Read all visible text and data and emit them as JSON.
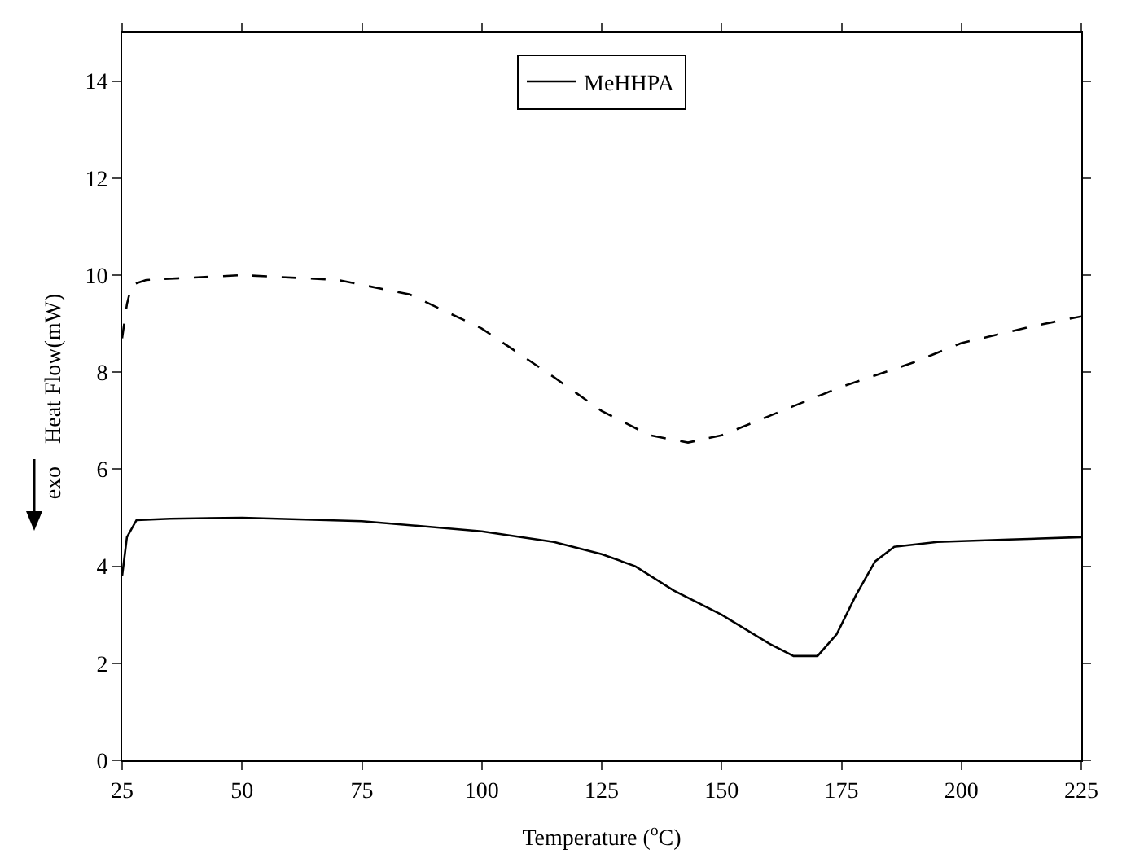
{
  "chart_data": {
    "type": "line",
    "xlabel": "Temperature ($^{o}$C)",
    "ylabel": "exo    Heat Flow(mW)",
    "xlim": [
      25,
      225
    ],
    "xticks": [
      25,
      50,
      75,
      100,
      125,
      150,
      175,
      200,
      225
    ],
    "ylim": [
      0,
      15
    ],
    "yticks": [
      0,
      2,
      4,
      6,
      8,
      10,
      12,
      14
    ],
    "grid": false,
    "legend": "top",
    "marker": "none",
    "series": [
      {
        "name": "MeHHPA",
        "color": "#000000",
        "line_style": "solid",
        "x": [
          25,
          26,
          28,
          35,
          50,
          75,
          100,
          115,
          125,
          132,
          140,
          150,
          160,
          165,
          170,
          174,
          178,
          182,
          186,
          195,
          210,
          225
        ],
        "values": [
          3.8,
          4.6,
          4.95,
          4.98,
          5.0,
          4.93,
          4.72,
          4.5,
          4.25,
          4.0,
          3.5,
          3.0,
          2.4,
          2.15,
          2.15,
          2.6,
          3.4,
          4.1,
          4.4,
          4.5,
          4.55,
          4.6
        ]
      },
      {
        "color": "#000000",
        "line_style": "dashed",
        "x": [
          25,
          26,
          27,
          30,
          50,
          70,
          85,
          100,
          115,
          125,
          135,
          143,
          150,
          160,
          175,
          190,
          200,
          215,
          225
        ],
        "values": [
          8.7,
          9.4,
          9.8,
          9.9,
          10.0,
          9.9,
          9.6,
          8.9,
          7.9,
          7.2,
          6.7,
          6.55,
          6.7,
          7.1,
          7.7,
          8.2,
          8.6,
          8.95,
          9.15
        ]
      }
    ]
  }
}
